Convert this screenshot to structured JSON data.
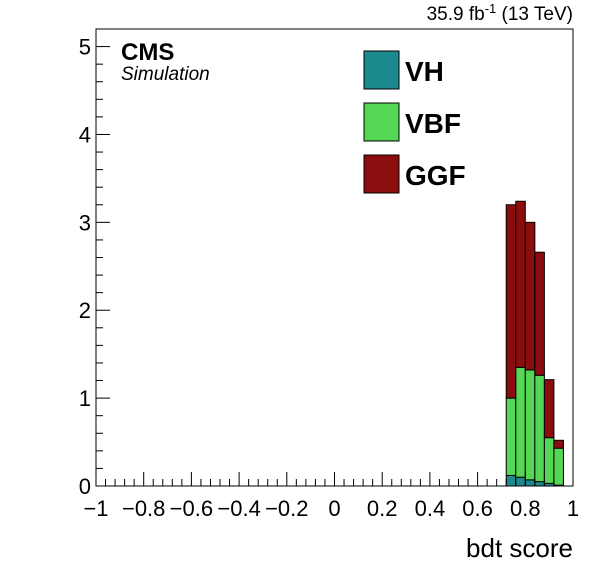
{
  "chart_data": {
    "type": "bar",
    "stacked": true,
    "histogram": true,
    "title": "",
    "xlabel": "bdt score",
    "ylabel": "",
    "xlim": [
      -1,
      1
    ],
    "ylim": [
      0,
      5.2
    ],
    "x_ticks": [
      "−1",
      "−0.8",
      "−0.6",
      "−0.4",
      "−0.2",
      "0",
      "0.2",
      "0.4",
      "0.6",
      "0.8",
      "1"
    ],
    "y_ticks": [
      "0",
      "1",
      "2",
      "3",
      "4",
      "5"
    ],
    "bin_edges": [
      0.72,
      0.76,
      0.8,
      0.84,
      0.88,
      0.92,
      0.96
    ],
    "series": [
      {
        "name": "VH",
        "color": "#1a8a8e",
        "values": [
          0.12,
          0.1,
          0.07,
          0.05,
          0.03,
          0.01
        ]
      },
      {
        "name": "VBF",
        "color": "#55d655",
        "values": [
          0.88,
          1.25,
          1.25,
          1.21,
          0.52,
          0.42
        ]
      },
      {
        "name": "GGF",
        "color": "#8b0d0d",
        "values": [
          2.2,
          1.89,
          1.68,
          1.4,
          0.66,
          0.09
        ]
      }
    ],
    "legend": {
      "position": "top-center",
      "entries": [
        "VH",
        "VBF",
        "GGF"
      ]
    },
    "grid": false,
    "lumi_text": {
      "value": "35.9 fb",
      "exponent": "-1",
      "suffix": " (13 TeV)"
    },
    "experiment": "CMS",
    "experiment_sub": "Simulation"
  }
}
